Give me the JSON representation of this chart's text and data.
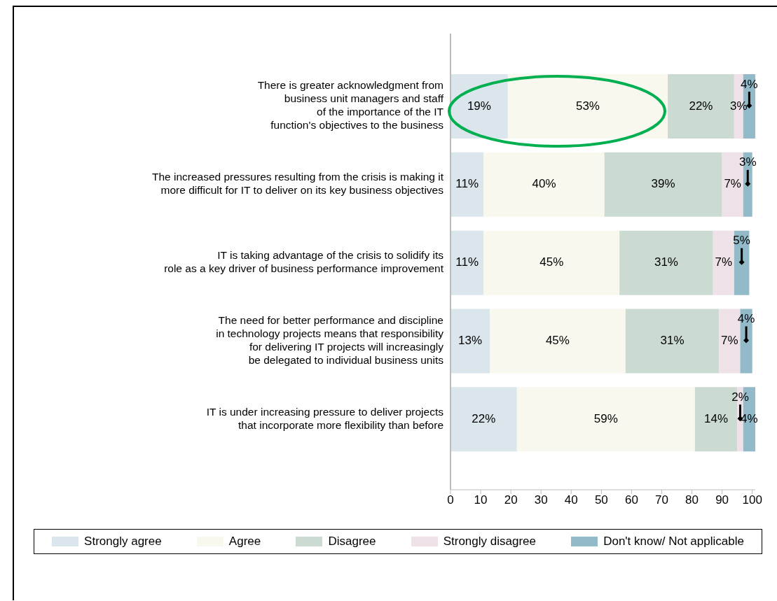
{
  "chart_data": {
    "type": "bar",
    "orientation": "horizontal",
    "stacked": true,
    "categories": [
      "There is greater acknowledgment from\nbusiness unit managers and staff\nof the importance of the IT\nfunction's objectives to the business",
      "The increased pressures resulting from the crisis is making it\nmore difficult for IT to deliver on its key business objectives",
      "IT is taking advantage of the crisis to solidify its\nrole as a key driver of business performance improvement",
      "The need for better performance and discipline\nin technology projects means that responsibility\nfor delivering IT projects will increasingly\nbe delegated to individual business units",
      "IT is under increasing pressure to deliver projects\nthat incorporate more flexibility than before"
    ],
    "series": [
      {
        "name": "Strongly agree",
        "color": "#dbe6ec",
        "values": [
          19,
          11,
          11,
          13,
          22
        ],
        "value_labels": [
          "19%",
          "11%",
          "11%",
          "13%",
          "22%"
        ]
      },
      {
        "name": "Agree",
        "color": "#f8f8ef",
        "values": [
          53,
          40,
          45,
          45,
          59
        ],
        "value_labels": [
          "53%",
          "40%",
          "45%",
          "45%",
          "59%"
        ]
      },
      {
        "name": "Disagree",
        "color": "#ccdbd1",
        "values": [
          22,
          39,
          31,
          31,
          14
        ],
        "value_labels": [
          "22%",
          "39%",
          "31%",
          "31%",
          "14%"
        ]
      },
      {
        "name": "Strongly disagree",
        "color": "#eee2e8",
        "values": [
          3,
          7,
          7,
          7,
          2
        ],
        "value_labels": [
          "3%",
          "7%",
          "7%",
          "7%",
          "2%"
        ]
      },
      {
        "name": "Don't know/ Not applicable",
        "color": "#93bac9",
        "values": [
          4,
          3,
          5,
          4,
          4
        ],
        "value_labels": [
          "4%",
          "3%",
          "5%",
          "4%",
          "4%"
        ]
      }
    ],
    "xlim": [
      0,
      101
    ],
    "xticks": [
      0,
      10,
      20,
      30,
      40,
      50,
      60,
      70,
      80,
      90,
      100
    ],
    "grid": false,
    "legend": "bottom"
  }
}
